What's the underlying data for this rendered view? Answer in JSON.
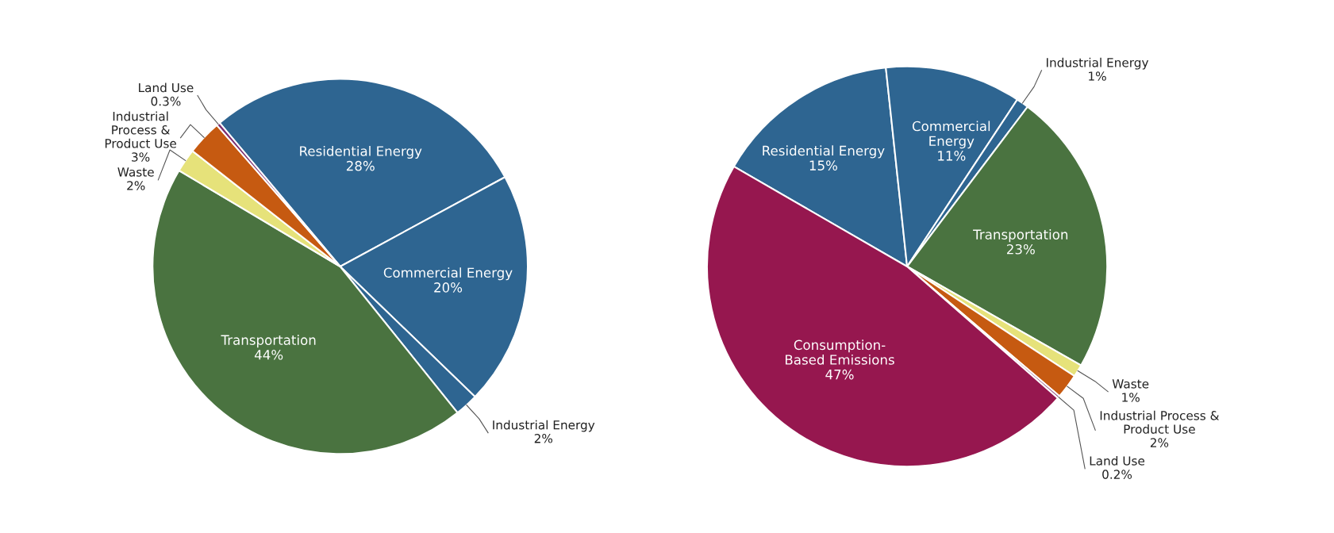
{
  "chart_data": [
    {
      "type": "pie",
      "categories": [
        "Residential Energy",
        "Commercial Energy",
        "Industrial Energy",
        "Transportation",
        "Waste",
        "Industrial\nProcess &\nProduct Use",
        "Land Use"
      ],
      "values": [
        28,
        20,
        2,
        44,
        2,
        3,
        0.3
      ],
      "value_labels": [
        "28%",
        "20%",
        "2%",
        "44%",
        "2%",
        "3%",
        "0.3%"
      ],
      "colors": [
        "#2e6591",
        "#2e6591",
        "#2e6591",
        "#4a7340",
        "#e6e27a",
        "#c65a11",
        "#7b2c6e"
      ]
    },
    {
      "type": "pie",
      "categories": [
        "Residential Energy",
        "Commercial\nEnergy",
        "Industrial Energy",
        "Transportation",
        "Waste",
        "Industrial Process &\nProduct Use",
        "Land Use",
        "Consumption-\nBased Emissions"
      ],
      "values": [
        15,
        11,
        1,
        23,
        1,
        2,
        0.2,
        47
      ],
      "value_labels": [
        "15%",
        "11%",
        "1%",
        "23%",
        "1%",
        "2%",
        "0.2%",
        "47%"
      ],
      "colors": [
        "#2e6591",
        "#2e6591",
        "#2e6591",
        "#4a7340",
        "#e6e27a",
        "#c65a11",
        "#7b2c6e",
        "#96174f"
      ]
    }
  ]
}
